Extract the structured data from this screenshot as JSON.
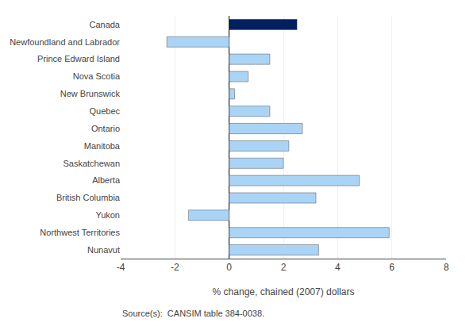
{
  "chart_data": {
    "type": "bar",
    "orientation": "horizontal",
    "categories": [
      "Canada",
      "Newfoundland and Labrador",
      "Prince Edward Island",
      "Nova Scotia",
      "New Brunswick",
      "Quebec",
      "Ontario",
      "Manitoba",
      "Saskatchewan",
      "Alberta",
      "British Columbia",
      "Yukon",
      "Northwest Territories",
      "Nunavut"
    ],
    "values": [
      2.5,
      -2.3,
      1.5,
      0.7,
      0.2,
      1.5,
      2.7,
      2.2,
      2.0,
      4.8,
      3.2,
      -1.5,
      5.9,
      3.3
    ],
    "colors": [
      "#002060",
      "#aad4f5",
      "#aad4f5",
      "#aad4f5",
      "#aad4f5",
      "#aad4f5",
      "#aad4f5",
      "#aad4f5",
      "#aad4f5",
      "#aad4f5",
      "#aad4f5",
      "#aad4f5",
      "#aad4f5",
      "#aad4f5"
    ],
    "xlabel": "% change, chained (2007) dollars",
    "xlim": [
      -4,
      8
    ],
    "xticks": [
      -4,
      -2,
      0,
      2,
      4,
      6,
      8
    ],
    "grid": true,
    "annotations": [
      "Source(s):  CANSIM table 384-0038."
    ]
  }
}
